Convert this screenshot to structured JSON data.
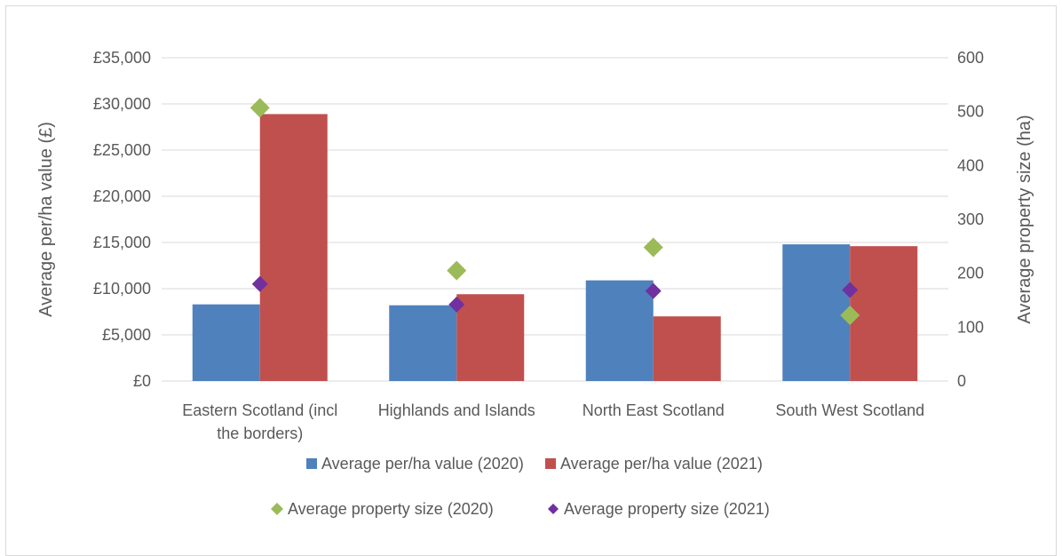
{
  "chart_data": {
    "type": "bar",
    "categories": [
      [
        "Eastern Scotland (incl",
        "the borders)"
      ],
      [
        "Highlands and Islands"
      ],
      [
        "North East Scotland"
      ],
      [
        "South West Scotland"
      ]
    ],
    "series": [
      {
        "name": "Average per/ha value (2020)",
        "kind": "bar",
        "axis": "left",
        "color": "#4f81bd",
        "values": [
          8300,
          8200,
          10900,
          14800
        ]
      },
      {
        "name": "Average per/ha value (2021)",
        "kind": "bar",
        "axis": "left",
        "color": "#c0504d",
        "values": [
          28900,
          9400,
          7000,
          14600
        ]
      },
      {
        "name": "Average property size (2020)",
        "kind": "marker",
        "axis": "right",
        "color": "#9bbb59",
        "values": [
          507,
          205,
          248,
          122
        ]
      },
      {
        "name": "Average property size (2021)",
        "kind": "marker",
        "axis": "right",
        "color": "#7030a0",
        "values": [
          180,
          142,
          167,
          169
        ]
      }
    ],
    "y_left": {
      "label": "Average per/ha value (£)",
      "range": [
        0,
        35000
      ],
      "ticks": [
        "£0",
        "£5,000",
        "£10,000",
        "£15,000",
        "£20,000",
        "£25,000",
        "£30,000",
        "£35,000"
      ],
      "tick_values": [
        0,
        5000,
        10000,
        15000,
        20000,
        25000,
        30000,
        35000
      ]
    },
    "y_right": {
      "label": "Average property size (ha)",
      "range": [
        0,
        600
      ],
      "ticks": [
        "0",
        "100",
        "200",
        "300",
        "400",
        "500",
        "600"
      ],
      "tick_values": [
        0,
        100,
        200,
        300,
        400,
        500,
        600
      ]
    },
    "grid": true,
    "legend_position": "bottom"
  }
}
